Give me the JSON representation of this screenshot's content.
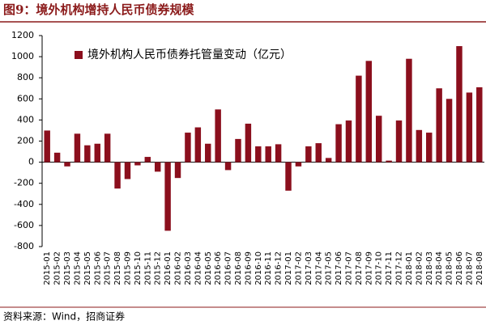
{
  "chart_data": {
    "type": "bar",
    "title": "图9：境外机构增持人民币债券规模",
    "source": "资料来源：Wind，招商证券",
    "categories": [
      "2015-01",
      "2015-02",
      "2015-03",
      "2015-04",
      "2015-05",
      "2015-06",
      "2015-07",
      "2015-08",
      "2015-09",
      "2015-10",
      "2015-11",
      "2015-12",
      "2016-01",
      "2016-02",
      "2016-03",
      "2016-04",
      "2016-05",
      "2016-06",
      "2016-07",
      "2016-08",
      "2016-09",
      "2016-10",
      "2016-11",
      "2016-12",
      "2017-01",
      "2017-02",
      "2017-03",
      "2017-04",
      "2017-05",
      "2017-06",
      "2017-07",
      "2017-08",
      "2017-09",
      "2017-10",
      "2017-11",
      "2017-12",
      "2018-01",
      "2018-02",
      "2018-03",
      "2018-04",
      "2018-05",
      "2018-06",
      "2018-07",
      "2018-08"
    ],
    "series": [
      {
        "name": "境外机构人民币债券托管量变动（亿元）",
        "color": "#8b0f1d",
        "values": [
          300,
          90,
          -40,
          270,
          160,
          175,
          270,
          -250,
          -160,
          -30,
          50,
          -90,
          -650,
          -150,
          280,
          330,
          175,
          500,
          -75,
          220,
          365,
          150,
          150,
          170,
          -270,
          -40,
          150,
          180,
          40,
          360,
          395,
          820,
          960,
          440,
          15,
          395,
          980,
          305,
          280,
          700,
          600,
          1100,
          660,
          710
        ]
      }
    ],
    "ylim": [
      -800,
      1200
    ],
    "yticks": [
      -800,
      -600,
      -400,
      -200,
      0,
      200,
      400,
      600,
      800,
      1000,
      1200
    ],
    "legend": "upper left"
  }
}
